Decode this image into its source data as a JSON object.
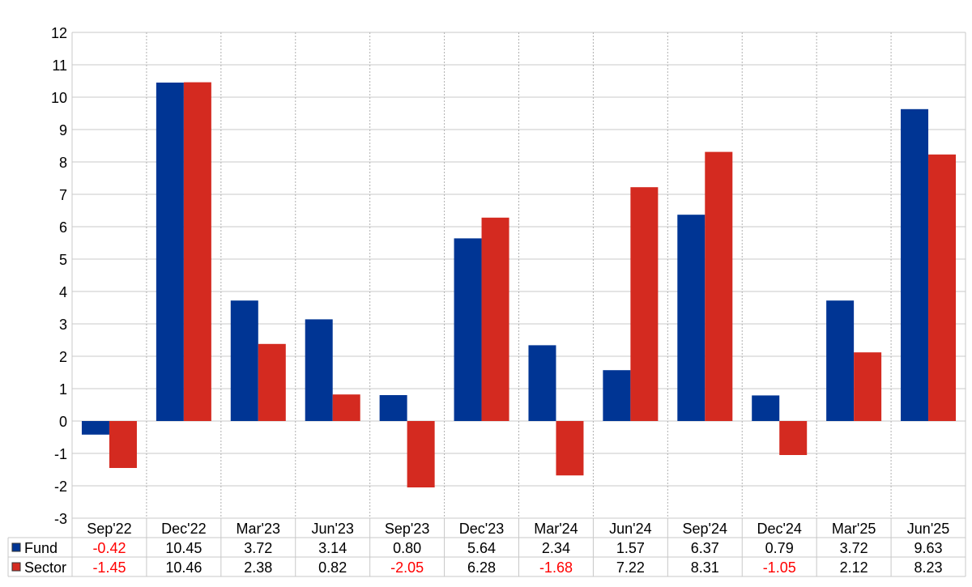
{
  "chart_data": {
    "type": "bar",
    "title": "",
    "xlabel": "",
    "ylabel": "",
    "ylim": [
      -3,
      12
    ],
    "yticks": [
      -3,
      -2,
      -1,
      0,
      1,
      2,
      3,
      4,
      5,
      6,
      7,
      8,
      9,
      10,
      11,
      12
    ],
    "grid": true,
    "legend": "bottom-left-in-table",
    "categories": [
      "Sep'22",
      "Dec'22",
      "Mar'23",
      "Jun'23",
      "Sep'23",
      "Dec'23",
      "Mar'24",
      "Jun'24",
      "Sep'24",
      "Dec'24",
      "Mar'25",
      "Jun'25"
    ],
    "series": [
      {
        "name": "Fund",
        "color": "#003594",
        "values": [
          -0.42,
          10.45,
          3.72,
          3.14,
          0.8,
          5.64,
          2.34,
          1.57,
          6.37,
          0.79,
          3.72,
          9.63
        ],
        "labels": [
          "-0.42",
          "10.45",
          "3.72",
          "3.14",
          "0.80",
          "5.64",
          "2.34",
          "1.57",
          "6.37",
          "0.79",
          "3.72",
          "9.63"
        ]
      },
      {
        "name": "Sector",
        "color": "#d42a20",
        "values": [
          -1.45,
          10.46,
          2.38,
          0.82,
          -2.05,
          6.28,
          -1.68,
          7.22,
          8.31,
          -1.05,
          2.12,
          8.23
        ],
        "labels": [
          "-1.45",
          "10.46",
          "2.38",
          "0.82",
          "-2.05",
          "6.28",
          "-1.68",
          "7.22",
          "8.31",
          "-1.05",
          "2.12",
          "8.23"
        ]
      }
    ],
    "negative_value_color": "#ff0000",
    "positive_value_color": "#000000"
  }
}
